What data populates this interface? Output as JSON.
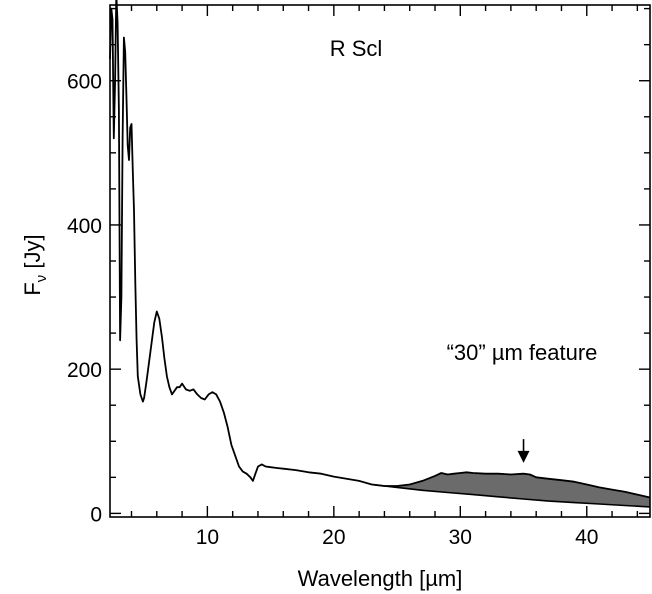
{
  "chart_data": {
    "type": "line",
    "title": "R Scl",
    "xlabel": "Wavelength [µm]",
    "ylabel_main": "F",
    "ylabel_sub": "ν",
    "ylabel_unit": " [Jy]",
    "xlim": [
      2.3,
      45
    ],
    "ylim": [
      -5,
      705
    ],
    "x_ticks": [
      10,
      20,
      30,
      40
    ],
    "y_ticks": [
      0,
      200,
      400,
      600
    ],
    "x_tick_labels": [
      "10",
      "20",
      "30",
      "40"
    ],
    "y_tick_labels": [
      "0",
      "200",
      "400",
      "600"
    ],
    "grid": false,
    "annotation": {
      "text": "“30” µm feature",
      "arrow_x": 35,
      "arrow_y_from": 103,
      "arrow_y_to": 70
    },
    "series": [
      {
        "role": "spectrum",
        "x": [
          2.3,
          2.4,
          2.5,
          2.6,
          2.7,
          2.8,
          2.9,
          3.0,
          3.1,
          3.2,
          3.3,
          3.4,
          3.5,
          3.6,
          3.7,
          3.8,
          3.9,
          4.0,
          4.1,
          4.2,
          4.3,
          4.4,
          4.5,
          4.7,
          4.9,
          5.0,
          5.2,
          5.5,
          5.8,
          6.0,
          6.2,
          6.4,
          6.6,
          6.8,
          7.0,
          7.2,
          7.4,
          7.6,
          7.8,
          8.0,
          8.3,
          8.6,
          8.9,
          9.2,
          9.5,
          9.8,
          10.1,
          10.4,
          10.7,
          11.0,
          11.3,
          11.6,
          11.9,
          12.2,
          12.5,
          12.8,
          13.1,
          13.4,
          13.6,
          13.8,
          14.0,
          14.3,
          14.6,
          15.0,
          15.5,
          16.0,
          17.0,
          18.0,
          19.0,
          20.0,
          21.0,
          22.0,
          23.0,
          24.0,
          25.0,
          26.0,
          27.0,
          28.0,
          28.5,
          29.0,
          29.5,
          30.0,
          30.5,
          31.0,
          32.0,
          33.0,
          34.0,
          35.0,
          35.5,
          36.0,
          37.0,
          38.0,
          39.0,
          40.0,
          41.0,
          42.0,
          43.0,
          44.0,
          45.0
        ],
        "y": [
          630,
          700,
          685,
          520,
          600,
          720,
          680,
          560,
          240,
          300,
          520,
          660,
          640,
          580,
          510,
          490,
          535,
          540,
          475,
          420,
          320,
          240,
          190,
          165,
          155,
          160,
          185,
          225,
          265,
          280,
          270,
          245,
          215,
          190,
          175,
          165,
          170,
          175,
          175,
          180,
          172,
          170,
          172,
          165,
          160,
          158,
          165,
          168,
          165,
          155,
          140,
          120,
          95,
          80,
          65,
          58,
          55,
          50,
          45,
          55,
          65,
          68,
          65,
          64,
          63,
          62,
          60,
          57,
          55,
          51,
          48,
          45,
          40,
          38,
          38,
          40,
          45,
          52,
          56,
          54,
          55,
          56,
          57,
          56,
          55,
          55,
          54,
          55,
          54,
          50,
          48,
          46,
          44,
          40,
          36,
          33,
          30,
          26,
          22
        ]
      },
      {
        "role": "continuum",
        "x": [
          23,
          25,
          27,
          29,
          31,
          33,
          35,
          37,
          39,
          41,
          43,
          45
        ],
        "y": [
          40,
          36,
          32,
          29,
          26,
          23,
          20,
          17,
          15,
          13,
          11,
          9
        ]
      }
    ]
  }
}
